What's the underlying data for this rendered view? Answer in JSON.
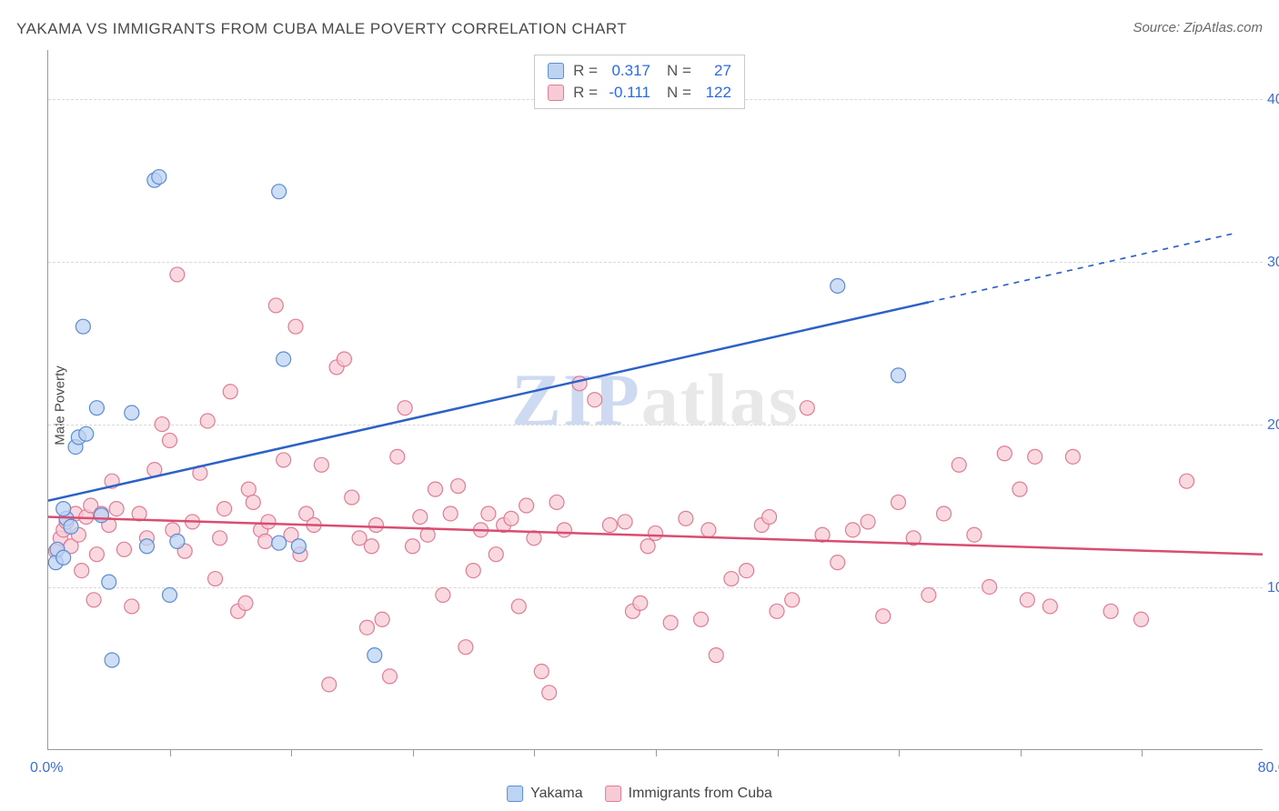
{
  "title": "YAKAMA VS IMMIGRANTS FROM CUBA MALE POVERTY CORRELATION CHART",
  "source_label": "Source: ZipAtlas.com",
  "y_axis_title": "Male Poverty",
  "watermark": {
    "prefix": "ZIP",
    "suffix": "atlas"
  },
  "chart": {
    "type": "scatter",
    "x_min": 0,
    "x_max": 80,
    "y_min": 0,
    "y_max": 43,
    "x_ticks": [
      0,
      8,
      16,
      24,
      32,
      40,
      48,
      56,
      64,
      72,
      80
    ],
    "x_tick_labels_visible": {
      "0": "0.0%",
      "80": "80.0%"
    },
    "y_gridlines": [
      10,
      20,
      30,
      40
    ],
    "y_tick_labels": {
      "10": "10.0%",
      "20": "20.0%",
      "30": "30.0%",
      "40": "40.0%"
    },
    "background_color": "#ffffff",
    "grid_color": "#d8d8d8",
    "axis_color": "#999999",
    "marker_radius": 8,
    "marker_stroke_width": 1.2,
    "line_width": 2.5,
    "series": [
      {
        "name": "Yakama",
        "marker_fill": "#bcd3f2",
        "marker_stroke": "#5b8cd6",
        "line_color": "#2c62c8",
        "r_value": "0.317",
        "n_value": "27",
        "trend": {
          "x1": 0,
          "y1": 15.3,
          "x2": 58,
          "y2": 27.5,
          "x2_dash": 78,
          "y2_dash": 31.7
        },
        "points": [
          [
            0.5,
            11.5
          ],
          [
            0.6,
            12.3
          ],
          [
            1,
            11.8
          ],
          [
            1.2,
            14.2
          ],
          [
            1,
            14.8
          ],
          [
            1.5,
            13.7
          ],
          [
            1.8,
            18.6
          ],
          [
            2,
            19.2
          ],
          [
            2.5,
            19.4
          ],
          [
            2.3,
            26.0
          ],
          [
            3.2,
            21.0
          ],
          [
            3.5,
            14.4
          ],
          [
            4,
            10.3
          ],
          [
            4.2,
            5.5
          ],
          [
            5.5,
            20.7
          ],
          [
            6.5,
            12.5
          ],
          [
            7.0,
            35.0
          ],
          [
            7.3,
            35.2
          ],
          [
            8,
            9.5
          ],
          [
            8.5,
            12.8
          ],
          [
            15.2,
            34.3
          ],
          [
            15.2,
            12.7
          ],
          [
            15.5,
            24.0
          ],
          [
            21.5,
            5.8
          ],
          [
            52,
            28.5
          ],
          [
            56,
            23.0
          ],
          [
            16.5,
            12.5
          ]
        ]
      },
      {
        "name": "Immigrants from Cuba",
        "marker_fill": "#f7cbd6",
        "marker_stroke": "#e07c95",
        "line_color": "#d94d72",
        "r_value": "-0.111",
        "n_value": "122",
        "trend": {
          "x1": 0,
          "y1": 14.3,
          "x2": 80,
          "y2": 12.0
        },
        "points": [
          [
            0.5,
            12.2
          ],
          [
            0.8,
            13.0
          ],
          [
            1,
            13.5
          ],
          [
            1.2,
            14.0
          ],
          [
            1.5,
            12.5
          ],
          [
            1.8,
            14.5
          ],
          [
            2,
            13.2
          ],
          [
            2.2,
            11.0
          ],
          [
            2.5,
            14.3
          ],
          [
            2.8,
            15.0
          ],
          [
            3,
            9.2
          ],
          [
            3.2,
            12.0
          ],
          [
            3.5,
            14.5
          ],
          [
            4,
            13.8
          ],
          [
            4.2,
            16.5
          ],
          [
            4.5,
            14.8
          ],
          [
            5,
            12.3
          ],
          [
            5.5,
            8.8
          ],
          [
            6,
            14.5
          ],
          [
            6.5,
            13.0
          ],
          [
            7,
            17.2
          ],
          [
            7.5,
            20.0
          ],
          [
            8,
            19.0
          ],
          [
            8.2,
            13.5
          ],
          [
            8.5,
            29.2
          ],
          [
            9,
            12.2
          ],
          [
            9.5,
            14.0
          ],
          [
            10,
            17.0
          ],
          [
            10.5,
            20.2
          ],
          [
            11,
            10.5
          ],
          [
            11.3,
            13.0
          ],
          [
            11.6,
            14.8
          ],
          [
            12,
            22.0
          ],
          [
            12.5,
            8.5
          ],
          [
            13,
            9.0
          ],
          [
            13.2,
            16.0
          ],
          [
            13.5,
            15.2
          ],
          [
            14,
            13.5
          ],
          [
            14.3,
            12.8
          ],
          [
            14.5,
            14.0
          ],
          [
            15,
            27.3
          ],
          [
            15.5,
            17.8
          ],
          [
            16,
            13.2
          ],
          [
            16.3,
            26.0
          ],
          [
            16.6,
            12.0
          ],
          [
            17,
            14.5
          ],
          [
            17.5,
            13.8
          ],
          [
            18,
            17.5
          ],
          [
            18.5,
            4.0
          ],
          [
            19,
            23.5
          ],
          [
            19.5,
            24.0
          ],
          [
            20,
            15.5
          ],
          [
            20.5,
            13.0
          ],
          [
            21,
            7.5
          ],
          [
            21.3,
            12.5
          ],
          [
            21.6,
            13.8
          ],
          [
            22,
            8.0
          ],
          [
            22.5,
            4.5
          ],
          [
            23,
            18.0
          ],
          [
            23.5,
            21.0
          ],
          [
            24,
            12.5
          ],
          [
            24.5,
            14.3
          ],
          [
            25,
            13.2
          ],
          [
            25.5,
            16.0
          ],
          [
            26,
            9.5
          ],
          [
            26.5,
            14.5
          ],
          [
            27,
            16.2
          ],
          [
            27.5,
            6.3
          ],
          [
            28,
            11.0
          ],
          [
            28.5,
            13.5
          ],
          [
            29,
            14.5
          ],
          [
            29.5,
            12.0
          ],
          [
            30,
            13.8
          ],
          [
            30.5,
            14.2
          ],
          [
            31,
            8.8
          ],
          [
            31.5,
            15.0
          ],
          [
            32,
            13.0
          ],
          [
            32.5,
            4.8
          ],
          [
            33,
            3.5
          ],
          [
            33.5,
            15.2
          ],
          [
            34,
            13.5
          ],
          [
            35,
            22.5
          ],
          [
            36,
            21.5
          ],
          [
            37,
            13.8
          ],
          [
            38,
            14.0
          ],
          [
            38.5,
            8.5
          ],
          [
            39,
            9.0
          ],
          [
            39.5,
            12.5
          ],
          [
            40,
            13.3
          ],
          [
            41,
            7.8
          ],
          [
            42,
            14.2
          ],
          [
            43,
            8.0
          ],
          [
            43.5,
            13.5
          ],
          [
            44,
            5.8
          ],
          [
            45,
            10.5
          ],
          [
            46,
            11.0
          ],
          [
            47,
            13.8
          ],
          [
            47.5,
            14.3
          ],
          [
            48,
            8.5
          ],
          [
            49,
            9.2
          ],
          [
            50,
            21.0
          ],
          [
            51,
            13.2
          ],
          [
            52,
            11.5
          ],
          [
            53,
            13.5
          ],
          [
            54,
            14.0
          ],
          [
            55,
            8.2
          ],
          [
            56,
            15.2
          ],
          [
            57,
            13.0
          ],
          [
            58,
            9.5
          ],
          [
            59,
            14.5
          ],
          [
            60,
            17.5
          ],
          [
            61,
            13.2
          ],
          [
            62,
            10.0
          ],
          [
            63,
            18.2
          ],
          [
            64,
            16.0
          ],
          [
            64.5,
            9.2
          ],
          [
            65,
            18.0
          ],
          [
            66,
            8.8
          ],
          [
            67.5,
            18.0
          ],
          [
            70,
            8.5
          ],
          [
            72,
            8.0
          ],
          [
            75,
            16.5
          ]
        ]
      }
    ]
  }
}
